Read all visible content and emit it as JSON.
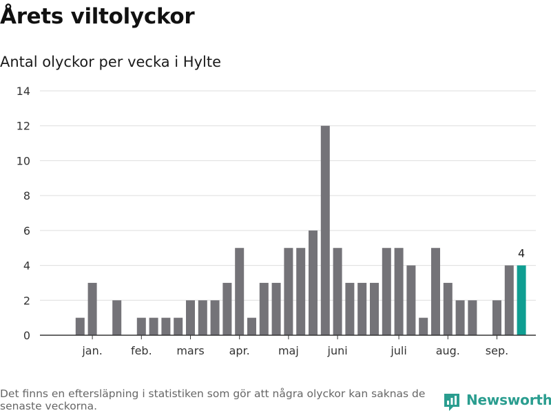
{
  "title": "Årets viltolyckor",
  "subtitle": "Antal olyckor per vecka i Hylte",
  "footnote": "Det finns en eftersläpning i statistiken som gör att några olyckor kan saknas de senaste veckorna.",
  "brand": {
    "name": "Newsworthy",
    "icon": "newsworthy-logo-icon"
  },
  "colors": {
    "bar": "#747378",
    "highlight": "#0f9e92",
    "grid": "#dddddd",
    "axis": "#333333",
    "brand": "#2a9d8f"
  },
  "chart_data": {
    "type": "bar",
    "xlabel": "",
    "ylabel": "",
    "ylim": [
      0,
      14
    ],
    "yticks": [
      0,
      2,
      4,
      6,
      8,
      10,
      12,
      14
    ],
    "grid": true,
    "weeks": [
      1,
      2,
      3,
      4,
      5,
      6,
      7,
      8,
      9,
      10,
      11,
      12,
      13,
      14,
      15,
      16,
      17,
      18,
      19,
      20,
      21,
      22,
      23,
      24,
      25,
      26,
      27,
      28,
      29,
      30,
      31,
      32,
      33,
      34,
      35,
      36,
      37,
      38
    ],
    "values": [
      0,
      1,
      3,
      0,
      2,
      0,
      1,
      1,
      1,
      1,
      2,
      2,
      2,
      3,
      5,
      1,
      3,
      3,
      5,
      5,
      6,
      12,
      5,
      3,
      3,
      3,
      5,
      5,
      4,
      1,
      5,
      3,
      2,
      2,
      0,
      2,
      4,
      4
    ],
    "month_labels": [
      {
        "label": "jan.",
        "week": 3
      },
      {
        "label": "feb.",
        "week": 7
      },
      {
        "label": "mars",
        "week": 11
      },
      {
        "label": "apr.",
        "week": 15
      },
      {
        "label": "maj",
        "week": 19
      },
      {
        "label": "juni",
        "week": 23
      },
      {
        "label": "juli",
        "week": 28
      },
      {
        "label": "aug.",
        "week": 32
      },
      {
        "label": "sep.",
        "week": 36
      }
    ],
    "highlight_week": 38,
    "highlight_label": "4"
  }
}
